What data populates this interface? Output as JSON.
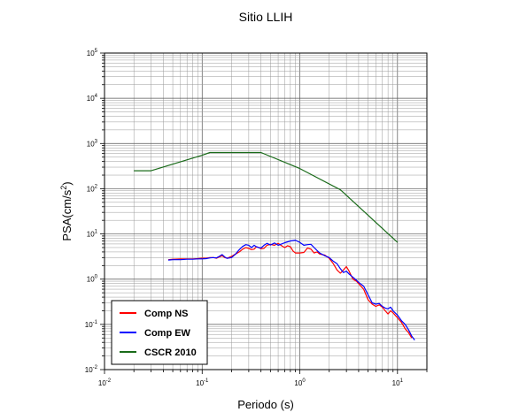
{
  "chart_data": {
    "type": "line",
    "title": "Sitio LLIH",
    "xlabel": "Periodo (s)",
    "ylabel_main": "PSA(cm/s",
    "ylabel_sup": "2",
    "ylabel_close": ")",
    "x_scale": "log",
    "y_scale": "log",
    "xlim": [
      0.01,
      20
    ],
    "ylim": [
      0.01,
      100000
    ],
    "x_ticks": [
      {
        "value": 0.01,
        "base": "10",
        "exp": "-2"
      },
      {
        "value": 0.1,
        "base": "10",
        "exp": "-1"
      },
      {
        "value": 1,
        "base": "10",
        "exp": "0"
      },
      {
        "value": 10,
        "base": "10",
        "exp": "1"
      }
    ],
    "y_ticks": [
      {
        "value": 0.01,
        "base": "10",
        "exp": "-2"
      },
      {
        "value": 0.1,
        "base": "10",
        "exp": "-1"
      },
      {
        "value": 1,
        "base": "10",
        "exp": "0"
      },
      {
        "value": 10,
        "base": "10",
        "exp": "1"
      },
      {
        "value": 100,
        "base": "10",
        "exp": "2"
      },
      {
        "value": 1000,
        "base": "10",
        "exp": "3"
      },
      {
        "value": 10000,
        "base": "10",
        "exp": "4"
      },
      {
        "value": 100000,
        "base": "10",
        "exp": "5"
      }
    ],
    "grid": true,
    "legend_position": "bottom-left",
    "series": [
      {
        "name": "Comp NS",
        "color": "#ff0000",
        "points": [
          [
            0.045,
            2.7
          ],
          [
            0.05,
            2.75
          ],
          [
            0.06,
            2.8
          ],
          [
            0.07,
            2.8
          ],
          [
            0.08,
            2.8
          ],
          [
            0.09,
            2.85
          ],
          [
            0.1,
            2.9
          ],
          [
            0.11,
            2.9
          ],
          [
            0.12,
            3.0
          ],
          [
            0.13,
            3.0
          ],
          [
            0.14,
            2.9
          ],
          [
            0.15,
            3.1
          ],
          [
            0.16,
            3.3
          ],
          [
            0.17,
            3.0
          ],
          [
            0.18,
            2.9
          ],
          [
            0.2,
            3.2
          ],
          [
            0.22,
            3.6
          ],
          [
            0.24,
            4.0
          ],
          [
            0.26,
            4.6
          ],
          [
            0.28,
            5.0
          ],
          [
            0.3,
            4.8
          ],
          [
            0.32,
            4.5
          ],
          [
            0.34,
            4.6
          ],
          [
            0.36,
            5.2
          ],
          [
            0.38,
            5.0
          ],
          [
            0.4,
            4.7
          ],
          [
            0.43,
            4.8
          ],
          [
            0.46,
            5.6
          ],
          [
            0.5,
            5.9
          ],
          [
            0.55,
            5.6
          ],
          [
            0.6,
            6.2
          ],
          [
            0.65,
            5.5
          ],
          [
            0.7,
            5.0
          ],
          [
            0.75,
            5.5
          ],
          [
            0.8,
            5.2
          ],
          [
            0.85,
            4.2
          ],
          [
            0.9,
            3.8
          ],
          [
            1.0,
            3.8
          ],
          [
            1.1,
            3.9
          ],
          [
            1.2,
            4.9
          ],
          [
            1.3,
            4.6
          ],
          [
            1.4,
            3.8
          ],
          [
            1.5,
            4.0
          ],
          [
            1.6,
            3.6
          ],
          [
            1.8,
            3.4
          ],
          [
            2.0,
            2.9
          ],
          [
            2.2,
            2.2
          ],
          [
            2.4,
            1.6
          ],
          [
            2.6,
            1.35
          ],
          [
            2.8,
            1.6
          ],
          [
            3.0,
            1.9
          ],
          [
            3.2,
            1.5
          ],
          [
            3.5,
            1.0
          ],
          [
            3.8,
            0.9
          ],
          [
            4.0,
            0.8
          ],
          [
            4.5,
            0.6
          ],
          [
            5.0,
            0.35
          ],
          [
            5.5,
            0.28
          ],
          [
            6.0,
            0.25
          ],
          [
            6.5,
            0.27
          ],
          [
            7.0,
            0.24
          ],
          [
            7.5,
            0.2
          ],
          [
            8.0,
            0.17
          ],
          [
            8.5,
            0.2
          ],
          [
            9.0,
            0.18
          ],
          [
            10.0,
            0.14
          ],
          [
            11.0,
            0.11
          ],
          [
            12.0,
            0.08
          ],
          [
            13.0,
            0.065
          ],
          [
            14.0,
            0.05
          ]
        ]
      },
      {
        "name": "Comp EW",
        "color": "#0000ff",
        "points": [
          [
            0.045,
            2.65
          ],
          [
            0.05,
            2.7
          ],
          [
            0.06,
            2.7
          ],
          [
            0.07,
            2.75
          ],
          [
            0.08,
            2.75
          ],
          [
            0.09,
            2.8
          ],
          [
            0.1,
            2.8
          ],
          [
            0.11,
            2.85
          ],
          [
            0.12,
            2.95
          ],
          [
            0.13,
            3.0
          ],
          [
            0.14,
            2.95
          ],
          [
            0.15,
            3.2
          ],
          [
            0.16,
            3.5
          ],
          [
            0.17,
            3.1
          ],
          [
            0.18,
            2.9
          ],
          [
            0.2,
            3.0
          ],
          [
            0.22,
            3.6
          ],
          [
            0.24,
            4.5
          ],
          [
            0.26,
            5.3
          ],
          [
            0.28,
            5.8
          ],
          [
            0.3,
            5.6
          ],
          [
            0.32,
            5.0
          ],
          [
            0.34,
            5.6
          ],
          [
            0.36,
            5.2
          ],
          [
            0.38,
            5.0
          ],
          [
            0.4,
            4.9
          ],
          [
            0.43,
            5.6
          ],
          [
            0.46,
            6.2
          ],
          [
            0.5,
            5.7
          ],
          [
            0.55,
            6.3
          ],
          [
            0.6,
            5.6
          ],
          [
            0.65,
            6.0
          ],
          [
            0.7,
            6.4
          ],
          [
            0.75,
            6.7
          ],
          [
            0.8,
            7.0
          ],
          [
            0.9,
            7.3
          ],
          [
            1.0,
            6.5
          ],
          [
            1.1,
            5.6
          ],
          [
            1.2,
            5.8
          ],
          [
            1.3,
            5.9
          ],
          [
            1.4,
            5.0
          ],
          [
            1.5,
            4.3
          ],
          [
            1.6,
            3.8
          ],
          [
            1.8,
            3.3
          ],
          [
            2.0,
            3.0
          ],
          [
            2.2,
            2.5
          ],
          [
            2.4,
            2.2
          ],
          [
            2.6,
            1.7
          ],
          [
            2.8,
            1.4
          ],
          [
            3.0,
            1.5
          ],
          [
            3.2,
            1.3
          ],
          [
            3.5,
            1.1
          ],
          [
            3.8,
            0.95
          ],
          [
            4.0,
            0.85
          ],
          [
            4.5,
            0.7
          ],
          [
            5.0,
            0.45
          ],
          [
            5.5,
            0.3
          ],
          [
            6.0,
            0.28
          ],
          [
            6.5,
            0.29
          ],
          [
            7.0,
            0.25
          ],
          [
            7.5,
            0.23
          ],
          [
            8.0,
            0.22
          ],
          [
            8.5,
            0.24
          ],
          [
            9.0,
            0.2
          ],
          [
            10.0,
            0.16
          ],
          [
            11.0,
            0.12
          ],
          [
            12.0,
            0.1
          ],
          [
            13.0,
            0.075
          ],
          [
            14.0,
            0.055
          ],
          [
            15.0,
            0.045
          ]
        ]
      },
      {
        "name": "CSCR 2010",
        "color": "#1a6b1a",
        "points": [
          [
            0.02,
            250
          ],
          [
            0.03,
            250
          ],
          [
            0.1,
            550
          ],
          [
            0.12,
            630
          ],
          [
            0.4,
            630
          ],
          [
            1.0,
            280
          ],
          [
            2.6,
            95
          ],
          [
            10.0,
            6.5
          ]
        ]
      }
    ]
  }
}
